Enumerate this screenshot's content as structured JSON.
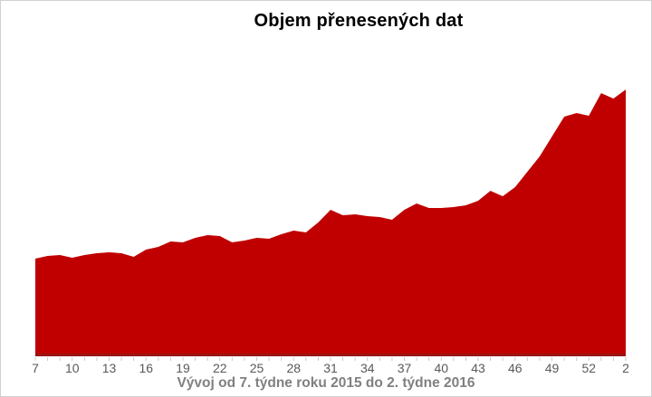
{
  "chart_data": {
    "type": "area",
    "title": "Objem přenesených dat",
    "subtitle": "Vývoj od 7. týdne roku 2015 do 2. týdne 2016",
    "x_week_numbers": [
      7,
      8,
      9,
      10,
      11,
      12,
      13,
      14,
      15,
      16,
      17,
      18,
      19,
      20,
      21,
      22,
      23,
      24,
      25,
      26,
      27,
      28,
      29,
      30,
      31,
      32,
      33,
      34,
      35,
      36,
      37,
      38,
      39,
      40,
      41,
      42,
      43,
      44,
      45,
      46,
      47,
      48,
      49,
      50,
      51,
      52,
      53,
      1,
      2
    ],
    "x_tick_labels": [
      "7",
      "10",
      "13",
      "16",
      "19",
      "22",
      "25",
      "28",
      "31",
      "34",
      "37",
      "40",
      "43",
      "46",
      "49",
      "52",
      "2"
    ],
    "tick_label_step": 3,
    "values": [
      105,
      108,
      109,
      106,
      109,
      111,
      112,
      111,
      107,
      115,
      118,
      124,
      123,
      128,
      131,
      130,
      123,
      125,
      128,
      127,
      132,
      136,
      134,
      145,
      159,
      153,
      154,
      152,
      151,
      148,
      159,
      166,
      161,
      161,
      162,
      164,
      169,
      180,
      174,
      184,
      201,
      218,
      240,
      262,
      266,
      263,
      288,
      282,
      292
    ],
    "ylim": [
      0,
      335
    ],
    "y_axis_visible": false,
    "grid": false,
    "legend": false,
    "colors": {
      "area": "#c00000",
      "axis_line": "#9a1414",
      "tick": "#c9c9c9",
      "tick_label": "#595959",
      "title": "#000000",
      "subtitle": "#808080",
      "frame_border": "#d0d0d0",
      "background": "#ffffff"
    }
  }
}
